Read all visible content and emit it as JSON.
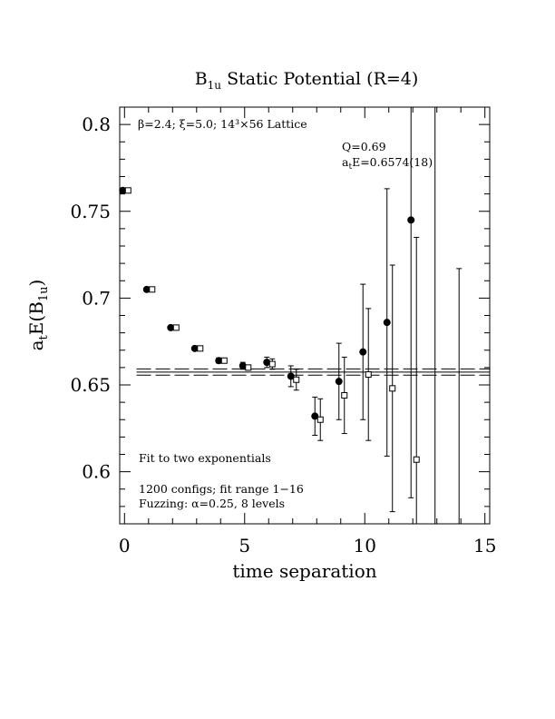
{
  "chart_data": {
    "type": "scatter",
    "title": "B",
    "title_sub": "1u",
    "title_rest": " Static Potential (R=4)",
    "xlabel": "time separation",
    "ylabel_main": "a",
    "ylabel_sub": "t",
    "ylabel_mid": "E(B",
    "ylabel_sub2": "1u",
    "ylabel_end": ")",
    "xlim": [
      -0.2,
      15.2
    ],
    "ylim": [
      0.57,
      0.81
    ],
    "xticks": [
      0,
      5,
      10,
      15
    ],
    "xtick_labels": [
      "0",
      "5",
      "10",
      "15"
    ],
    "yticks": [
      0.6,
      0.65,
      0.7,
      0.75,
      0.8
    ],
    "ytick_labels": [
      "0.6",
      "0.65",
      "0.7",
      "0.75",
      "0.8"
    ],
    "annotations": {
      "lattice": "β=2.4; ξ=5.0; 14³×56 Lattice",
      "q": "Q=0.69",
      "energy_pre": "a",
      "energy_sub": "t",
      "energy_post": "E=0.6574(18)",
      "fit": "Fit to two exponentials",
      "configs": "1200 configs; fit range 1−16",
      "fuzzing": "Fuzzing: α=0.25, 8 levels"
    },
    "fit_band": {
      "center": 0.6574,
      "lower": 0.6556,
      "upper": 0.6592
    },
    "series": [
      {
        "marker": "filled-circle",
        "points": [
          {
            "x": 0,
            "y": 0.762,
            "err": 0.001
          },
          {
            "x": 1,
            "y": 0.705,
            "err": 0.001
          },
          {
            "x": 2,
            "y": 0.683,
            "err": 0.001
          },
          {
            "x": 3,
            "y": 0.671,
            "err": 0.001
          },
          {
            "x": 4,
            "y": 0.664,
            "err": 0.0015
          },
          {
            "x": 5,
            "y": 0.661,
            "err": 0.002
          },
          {
            "x": 6,
            "y": 0.663,
            "err": 0.003
          },
          {
            "x": 7,
            "y": 0.655,
            "err": 0.006
          },
          {
            "x": 8,
            "y": 0.632,
            "err": 0.011
          },
          {
            "x": 9,
            "y": 0.652,
            "err": 0.022
          },
          {
            "x": 10,
            "y": 0.669,
            "err": 0.039
          },
          {
            "x": 11,
            "y": 0.686,
            "err": 0.077
          },
          {
            "x": 12,
            "y": 0.745,
            "err": 0.16
          },
          {
            "x": 13,
            "y": null,
            "err_low": 0.57,
            "err_high": 0.81
          },
          {
            "x": 14,
            "y": null,
            "err_low": 0.57,
            "err_high": 0.717
          }
        ]
      },
      {
        "marker": "open-square",
        "points": [
          {
            "x": 0,
            "y": 0.762,
            "err": 0.001
          },
          {
            "x": 1,
            "y": 0.705,
            "err": 0.001
          },
          {
            "x": 2,
            "y": 0.683,
            "err": 0.001
          },
          {
            "x": 3,
            "y": 0.671,
            "err": 0.001
          },
          {
            "x": 4,
            "y": 0.664,
            "err": 0.001
          },
          {
            "x": 5,
            "y": 0.66,
            "err": 0.0015
          },
          {
            "x": 6,
            "y": 0.662,
            "err": 0.003
          },
          {
            "x": 7,
            "y": 0.653,
            "err": 0.006
          },
          {
            "x": 8,
            "y": 0.63,
            "err": 0.012
          },
          {
            "x": 9,
            "y": 0.644,
            "err": 0.022
          },
          {
            "x": 10,
            "y": 0.656,
            "err": 0.038
          },
          {
            "x": 11,
            "y": 0.648,
            "err": 0.071
          },
          {
            "x": 12,
            "y": 0.607,
            "err": 0.128
          }
        ]
      }
    ]
  }
}
